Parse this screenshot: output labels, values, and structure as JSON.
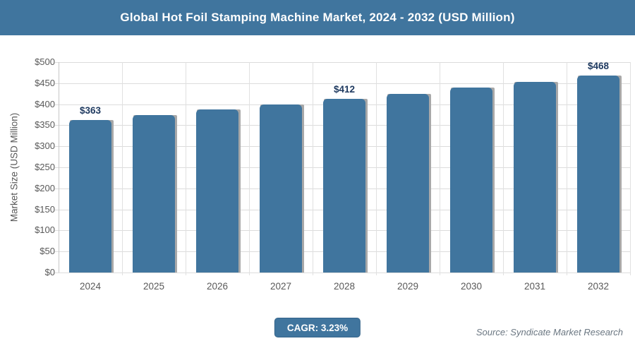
{
  "header": {
    "title": "Global Hot Foil Stamping Machine Market, 2024 - 2032 (USD Million)"
  },
  "chart_data": {
    "type": "bar",
    "title": "Global Hot Foil Stamping Machine Market, 2024 - 2032 (USD Million)",
    "categories": [
      "2024",
      "2025",
      "2026",
      "2027",
      "2028",
      "2029",
      "2030",
      "2031",
      "2032"
    ],
    "values": [
      363,
      375,
      387,
      399,
      412,
      425,
      439,
      453,
      468
    ],
    "data_labels": [
      "$363",
      null,
      null,
      null,
      "$412",
      null,
      null,
      null,
      "$468"
    ],
    "xlabel": "",
    "ylabel": "Market Size (USD Million)",
    "ylim": [
      0,
      500
    ],
    "ytick_step": 50,
    "ytick_labels": [
      "$0",
      "$50",
      "$100",
      "$150",
      "$200",
      "$250",
      "$300",
      "$350",
      "$400",
      "$450",
      "$500"
    ],
    "grid": true,
    "legend": "none"
  },
  "footer": {
    "cagr_label": "CAGR: 3.23%",
    "source": "Source: Syndicate Market Research"
  },
  "colors": {
    "accent_blue": "#40759E",
    "bar_shadow": "#a8a8a8",
    "grid_line": "#dcdcdc",
    "axis_text": "#595959",
    "data_label_navy": "#1f3a60",
    "title_text": "#ffffff",
    "source_text": "#6b7782",
    "badge_border": "#35648a"
  }
}
